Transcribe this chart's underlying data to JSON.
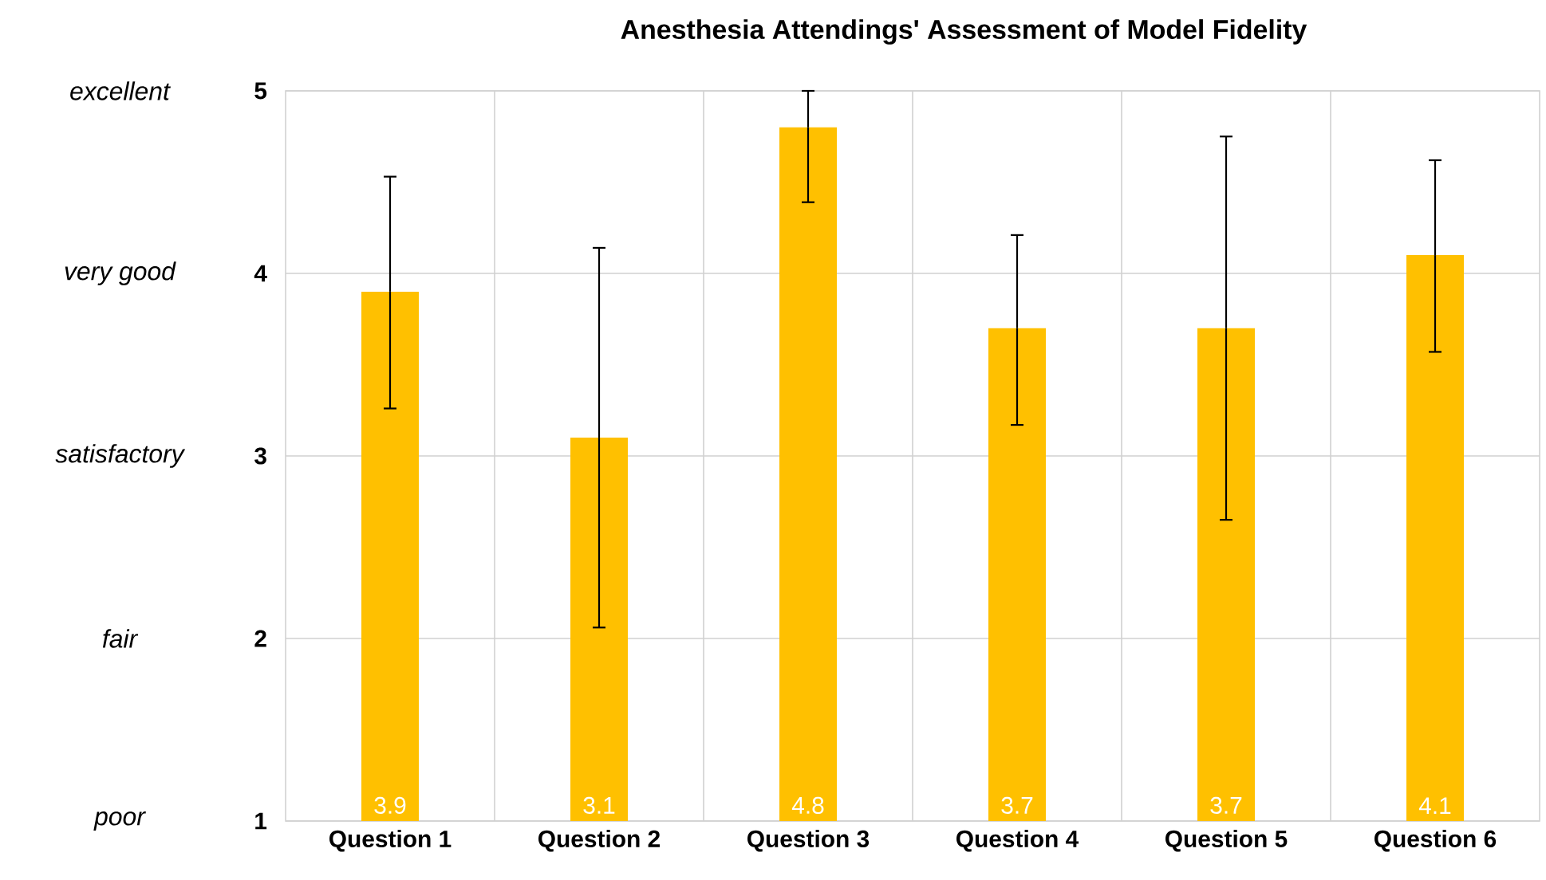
{
  "chart_data": {
    "type": "bar",
    "title": "Anesthesia Attendings' Assessment of Model Fidelity",
    "categories": [
      "Question 1",
      "Question 2",
      "Question 3",
      "Question 4",
      "Question 5",
      "Question 6"
    ],
    "values": [
      3.9,
      3.1,
      4.8,
      3.7,
      3.7,
      4.1
    ],
    "errors": [
      [
        3.26,
        4.53
      ],
      [
        2.06,
        4.14
      ],
      [
        4.39,
        5.0
      ],
      [
        3.17,
        4.21
      ],
      [
        2.65,
        4.75
      ],
      [
        3.57,
        4.62
      ]
    ],
    "color": "#ffc000",
    "ylim": [
      1,
      5
    ],
    "yticks": [
      1,
      2,
      3,
      4,
      5
    ],
    "grid": true,
    "data_labels": true,
    "annotations": [
      "poor",
      "fair",
      "satisfactory",
      "very good",
      "excellent"
    ]
  }
}
